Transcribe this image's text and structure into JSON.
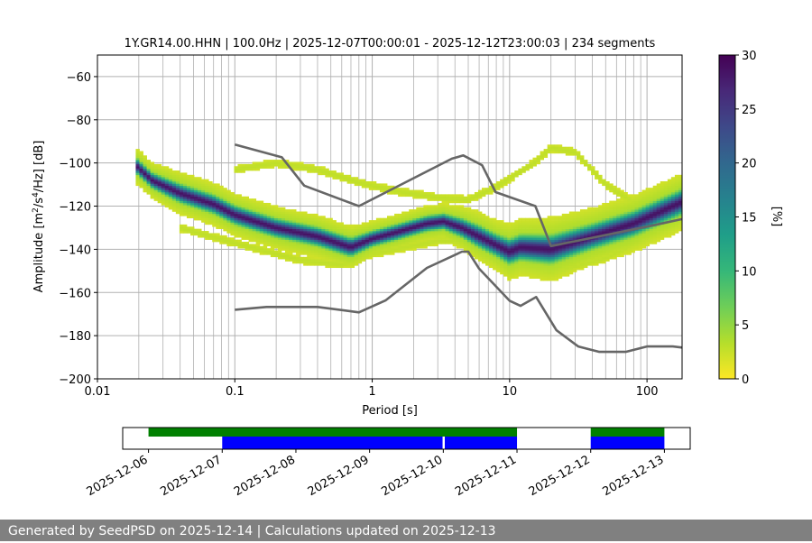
{
  "chart_data": [
    {
      "type": "heatmap",
      "title": "1Y.GR14.00.HHN | 100.0Hz | 2025-12-07T00:00:01 - 2025-12-12T23:00:03 | 234 segments",
      "xlabel": "Period [s]",
      "ylabel_parts": [
        "Amplitude [m",
        "2",
        "/s",
        "4",
        "/Hz] [dB]"
      ],
      "x_scale": "log",
      "xlim": [
        0.01,
        180
      ],
      "ylim": [
        -200,
        -50
      ],
      "x_ticks": [
        0.01,
        0.1,
        1,
        10,
        100
      ],
      "x_tick_labels": [
        "0.01",
        "0.1",
        "1",
        "10",
        "100"
      ],
      "y_ticks": [
        -60,
        -80,
        -100,
        -120,
        -140,
        -160,
        -180,
        -200
      ],
      "y_tick_labels": [
        "−60",
        "−80",
        "−100",
        "−120",
        "−140",
        "−160",
        "−180",
        "−200"
      ],
      "grid": true,
      "colorbar": {
        "label": "[%]",
        "range": [
          0,
          30
        ],
        "ticks": [
          0,
          5,
          10,
          15,
          20,
          25,
          30
        ],
        "tick_labels": [
          "0",
          "5",
          "10",
          "15",
          "20",
          "25",
          "30"
        ],
        "colormap": [
          "#fde725",
          "#b5de2b",
          "#6ece58",
          "#35b779",
          "#1f9e89",
          "#26828e",
          "#31688e",
          "#3e4989",
          "#482878",
          "#440154"
        ]
      },
      "mode_curve": {
        "name": "mode",
        "points": [
          [
            0.019,
            -101
          ],
          [
            0.025,
            -108
          ],
          [
            0.04,
            -114
          ],
          [
            0.07,
            -119
          ],
          [
            0.1,
            -124
          ],
          [
            0.2,
            -130
          ],
          [
            0.4,
            -134
          ],
          [
            0.7,
            -139
          ],
          [
            1.0,
            -135
          ],
          [
            1.5,
            -132
          ],
          [
            2.5,
            -128
          ],
          [
            3.3,
            -127
          ],
          [
            4.5,
            -130
          ],
          [
            6,
            -134
          ],
          [
            8,
            -138
          ],
          [
            10,
            -141
          ],
          [
            12,
            -139
          ],
          [
            20,
            -140
          ],
          [
            40,
            -134
          ],
          [
            80,
            -128
          ],
          [
            180,
            -118
          ]
        ],
        "spread_db": [
          5,
          5,
          6,
          6,
          6,
          6,
          6,
          6,
          5,
          5,
          5,
          5,
          6,
          7,
          7,
          8,
          8,
          9,
          8,
          8,
          8
        ]
      },
      "secondary_curves": [
        {
          "name": "upper-branch",
          "points": [
            [
              0.1,
              -103
            ],
            [
              0.2,
              -100
            ],
            [
              0.4,
              -103
            ],
            [
              0.8,
              -109
            ],
            [
              1.5,
              -113
            ],
            [
              3,
              -116
            ],
            [
              5,
              -117
            ],
            [
              8,
              -111
            ],
            [
              15,
              -100
            ],
            [
              20,
              -93
            ],
            [
              30,
              -95
            ],
            [
              50,
              -110
            ],
            [
              100,
              -122
            ],
            [
              180,
              -120
            ]
          ]
        },
        {
          "name": "lower-branch",
          "points": [
            [
              0.04,
              -130
            ],
            [
              0.1,
              -137
            ],
            [
              0.3,
              -145
            ],
            [
              0.6,
              -147
            ],
            [
              1,
              -142
            ],
            [
              3,
              -136
            ],
            [
              6,
              -136
            ],
            [
              10,
              -143
            ],
            [
              20,
              -151
            ],
            [
              50,
              -144
            ],
            [
              100,
              -135
            ],
            [
              180,
              -127
            ]
          ]
        }
      ],
      "nlnm_curve": {
        "name": "noise-model-low",
        "points": [
          [
            0.1,
            -168
          ],
          [
            0.17,
            -166.7
          ],
          [
            0.4,
            -166.7
          ],
          [
            0.8,
            -169.2
          ],
          [
            1.25,
            -163.7
          ],
          [
            2.5,
            -148.6
          ],
          [
            4.5,
            -141.1
          ],
          [
            5,
            -141.1
          ],
          [
            6,
            -149
          ],
          [
            10,
            -163.8
          ],
          [
            12,
            -166.2
          ],
          [
            15.6,
            -162.1
          ],
          [
            21.9,
            -177.5
          ],
          [
            31.6,
            -185
          ],
          [
            45,
            -187.5
          ],
          [
            70,
            -187.5
          ],
          [
            100,
            -185
          ],
          [
            154,
            -185
          ],
          [
            180,
            -185.5
          ]
        ]
      },
      "nhnm_curve": {
        "name": "noise-model-high",
        "points": [
          [
            0.1,
            -91.5
          ],
          [
            0.22,
            -97.4
          ],
          [
            0.32,
            -110.5
          ],
          [
            0.8,
            -120
          ],
          [
            3.8,
            -98
          ],
          [
            4.6,
            -96.5
          ],
          [
            6.3,
            -101
          ],
          [
            7.9,
            -113.5
          ],
          [
            15.4,
            -120
          ],
          [
            20,
            -138.5
          ],
          [
            100,
            -129.5
          ],
          [
            180,
            -126
          ]
        ]
      }
    },
    {
      "type": "timeline",
      "date_ticks": [
        "2025-12-06",
        "2025-12-07",
        "2025-12-08",
        "2025-12-09",
        "2025-12-10",
        "2025-12-11",
        "2025-12-12",
        "2025-12-13"
      ],
      "range_days": [
        -0.35,
        7.35
      ],
      "data_segments": [
        {
          "start": 0.0,
          "end": 5.0
        },
        {
          "start": 6.0,
          "end": 7.0
        }
      ],
      "psd_segments": [
        {
          "start": 1.0,
          "end": 3.99
        },
        {
          "start": 4.02,
          "end": 5.0
        },
        {
          "start": 6.0,
          "end": 7.0
        }
      ],
      "data_color": "#008000",
      "psd_color": "#0000ff"
    }
  ],
  "footer": {
    "text": "Generated by SeedPSD on 2025-12-14 | Calculations updated on 2025-12-13"
  },
  "colors": {
    "grid": "#b0b0b0",
    "model_line": "#666666",
    "footer_bg": "#808080"
  }
}
